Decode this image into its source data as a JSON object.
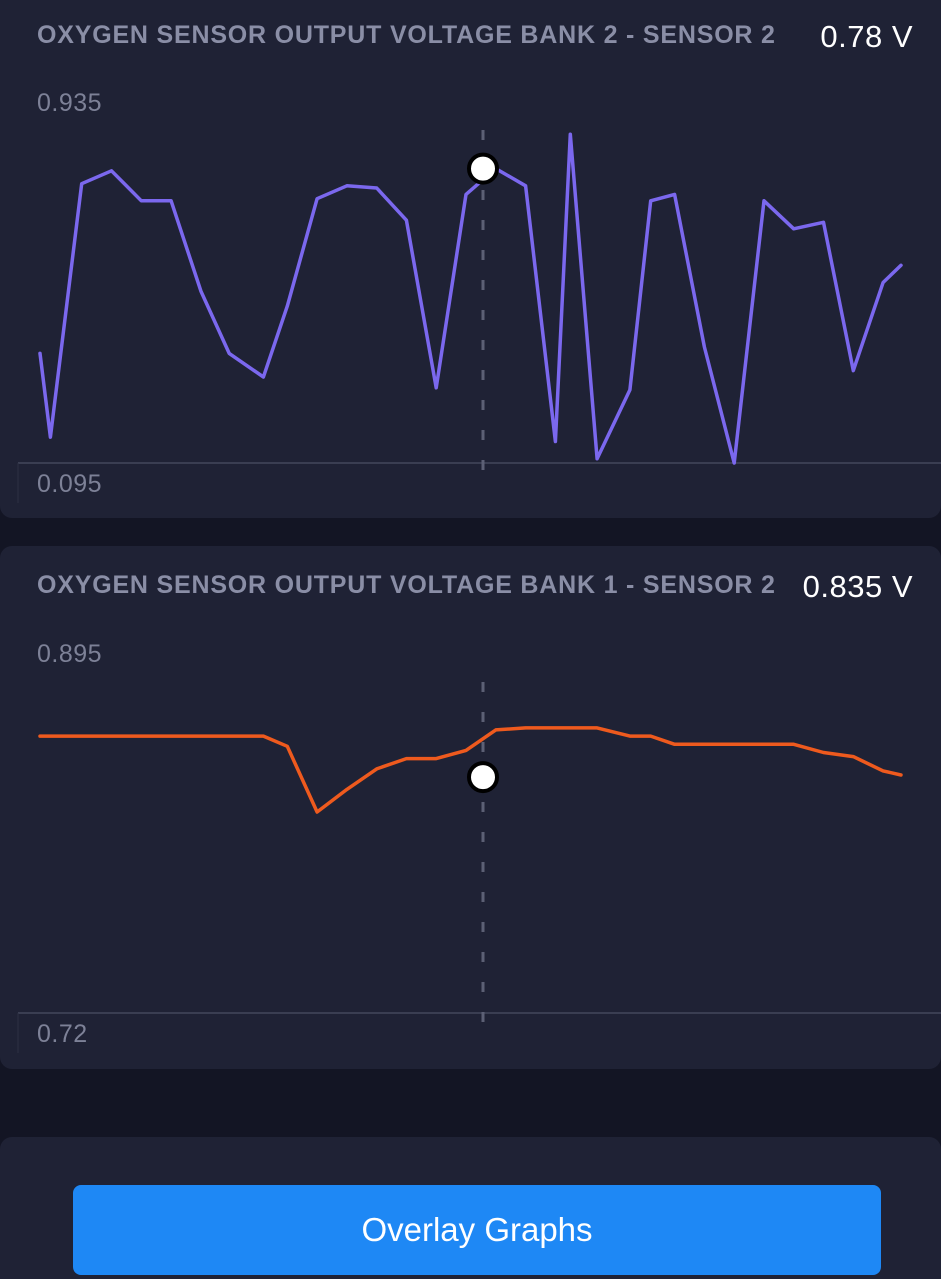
{
  "graphs": [
    {
      "title": "OXYGEN SENSOR OUTPUT VOLTAGE BANK 2 - SENSOR 2",
      "value": "0.78 V",
      "axis_max_label": "0.935",
      "axis_min_label": "0.095",
      "line_color": "#7b68ee",
      "cursor_value": 0.78
    },
    {
      "title": "OXYGEN SENSOR OUTPUT VOLTAGE BANK 1 - SENSOR 2",
      "value": "0.835 V",
      "axis_max_label": "0.895",
      "axis_min_label": "0.72",
      "line_color": "#ee5a1e",
      "cursor_value": 0.835
    }
  ],
  "chart_data": [
    {
      "type": "line",
      "title": "OXYGEN SENSOR OUTPUT VOLTAGE BANK 2 - SENSOR 2",
      "xlabel": "",
      "ylabel": "",
      "ylim": [
        0.095,
        0.935
      ],
      "grid": false,
      "x": [
        0,
        0.35,
        1.4,
        2.4,
        3.4,
        4.4,
        5.4,
        6.35,
        7.5,
        8.3,
        9.3,
        10.3,
        11.3,
        12.3,
        13.3,
        14.3,
        15.3,
        16.3,
        17.3,
        17.8,
        18.7,
        19.8,
        20.5,
        21.3,
        22.3,
        23.3,
        24.3,
        25.3,
        26.3,
        27.3,
        28.3,
        28.9
      ],
      "series": [
        {
          "values": [
            0.35,
            0.155,
            0.745,
            0.775,
            0.705,
            0.705,
            0.495,
            0.35,
            0.295,
            0.46,
            0.71,
            0.74,
            0.735,
            0.66,
            0.27,
            0.72,
            0.78,
            0.74,
            0.145,
            0.86,
            0.105,
            0.265,
            0.705,
            0.72,
            0.365,
            0.095,
            0.705,
            0.64,
            0.655,
            0.31,
            0.515,
            0.555
          ]
        }
      ]
    },
    {
      "type": "line",
      "title": "OXYGEN SENSOR OUTPUT VOLTAGE BANK 1 - SENSOR 2",
      "xlabel": "",
      "ylabel": "",
      "ylim": [
        0.72,
        0.895
      ],
      "grid": false,
      "x": [
        0,
        0.35,
        1.4,
        2.4,
        3.4,
        4.4,
        5.4,
        6.35,
        7.5,
        8.3,
        9.3,
        10.3,
        11.3,
        12.3,
        13.3,
        14.3,
        15.3,
        16.3,
        17.3,
        17.8,
        18.7,
        19.8,
        20.5,
        21.3,
        22.3,
        23.3,
        24.3,
        25.3,
        26.3,
        27.3,
        28.3,
        28.9
      ],
      "series": [
        {
          "values": [
            0.855,
            0.855,
            0.855,
            0.855,
            0.855,
            0.855,
            0.855,
            0.855,
            0.855,
            0.85,
            0.818,
            0.829,
            0.839,
            0.844,
            0.844,
            0.848,
            0.858,
            0.859,
            0.859,
            0.859,
            0.859,
            0.855,
            0.855,
            0.851,
            0.851,
            0.851,
            0.851,
            0.851,
            0.847,
            0.845,
            0.838,
            0.836
          ]
        }
      ]
    }
  ],
  "button": {
    "label": "Overlay Graphs"
  }
}
